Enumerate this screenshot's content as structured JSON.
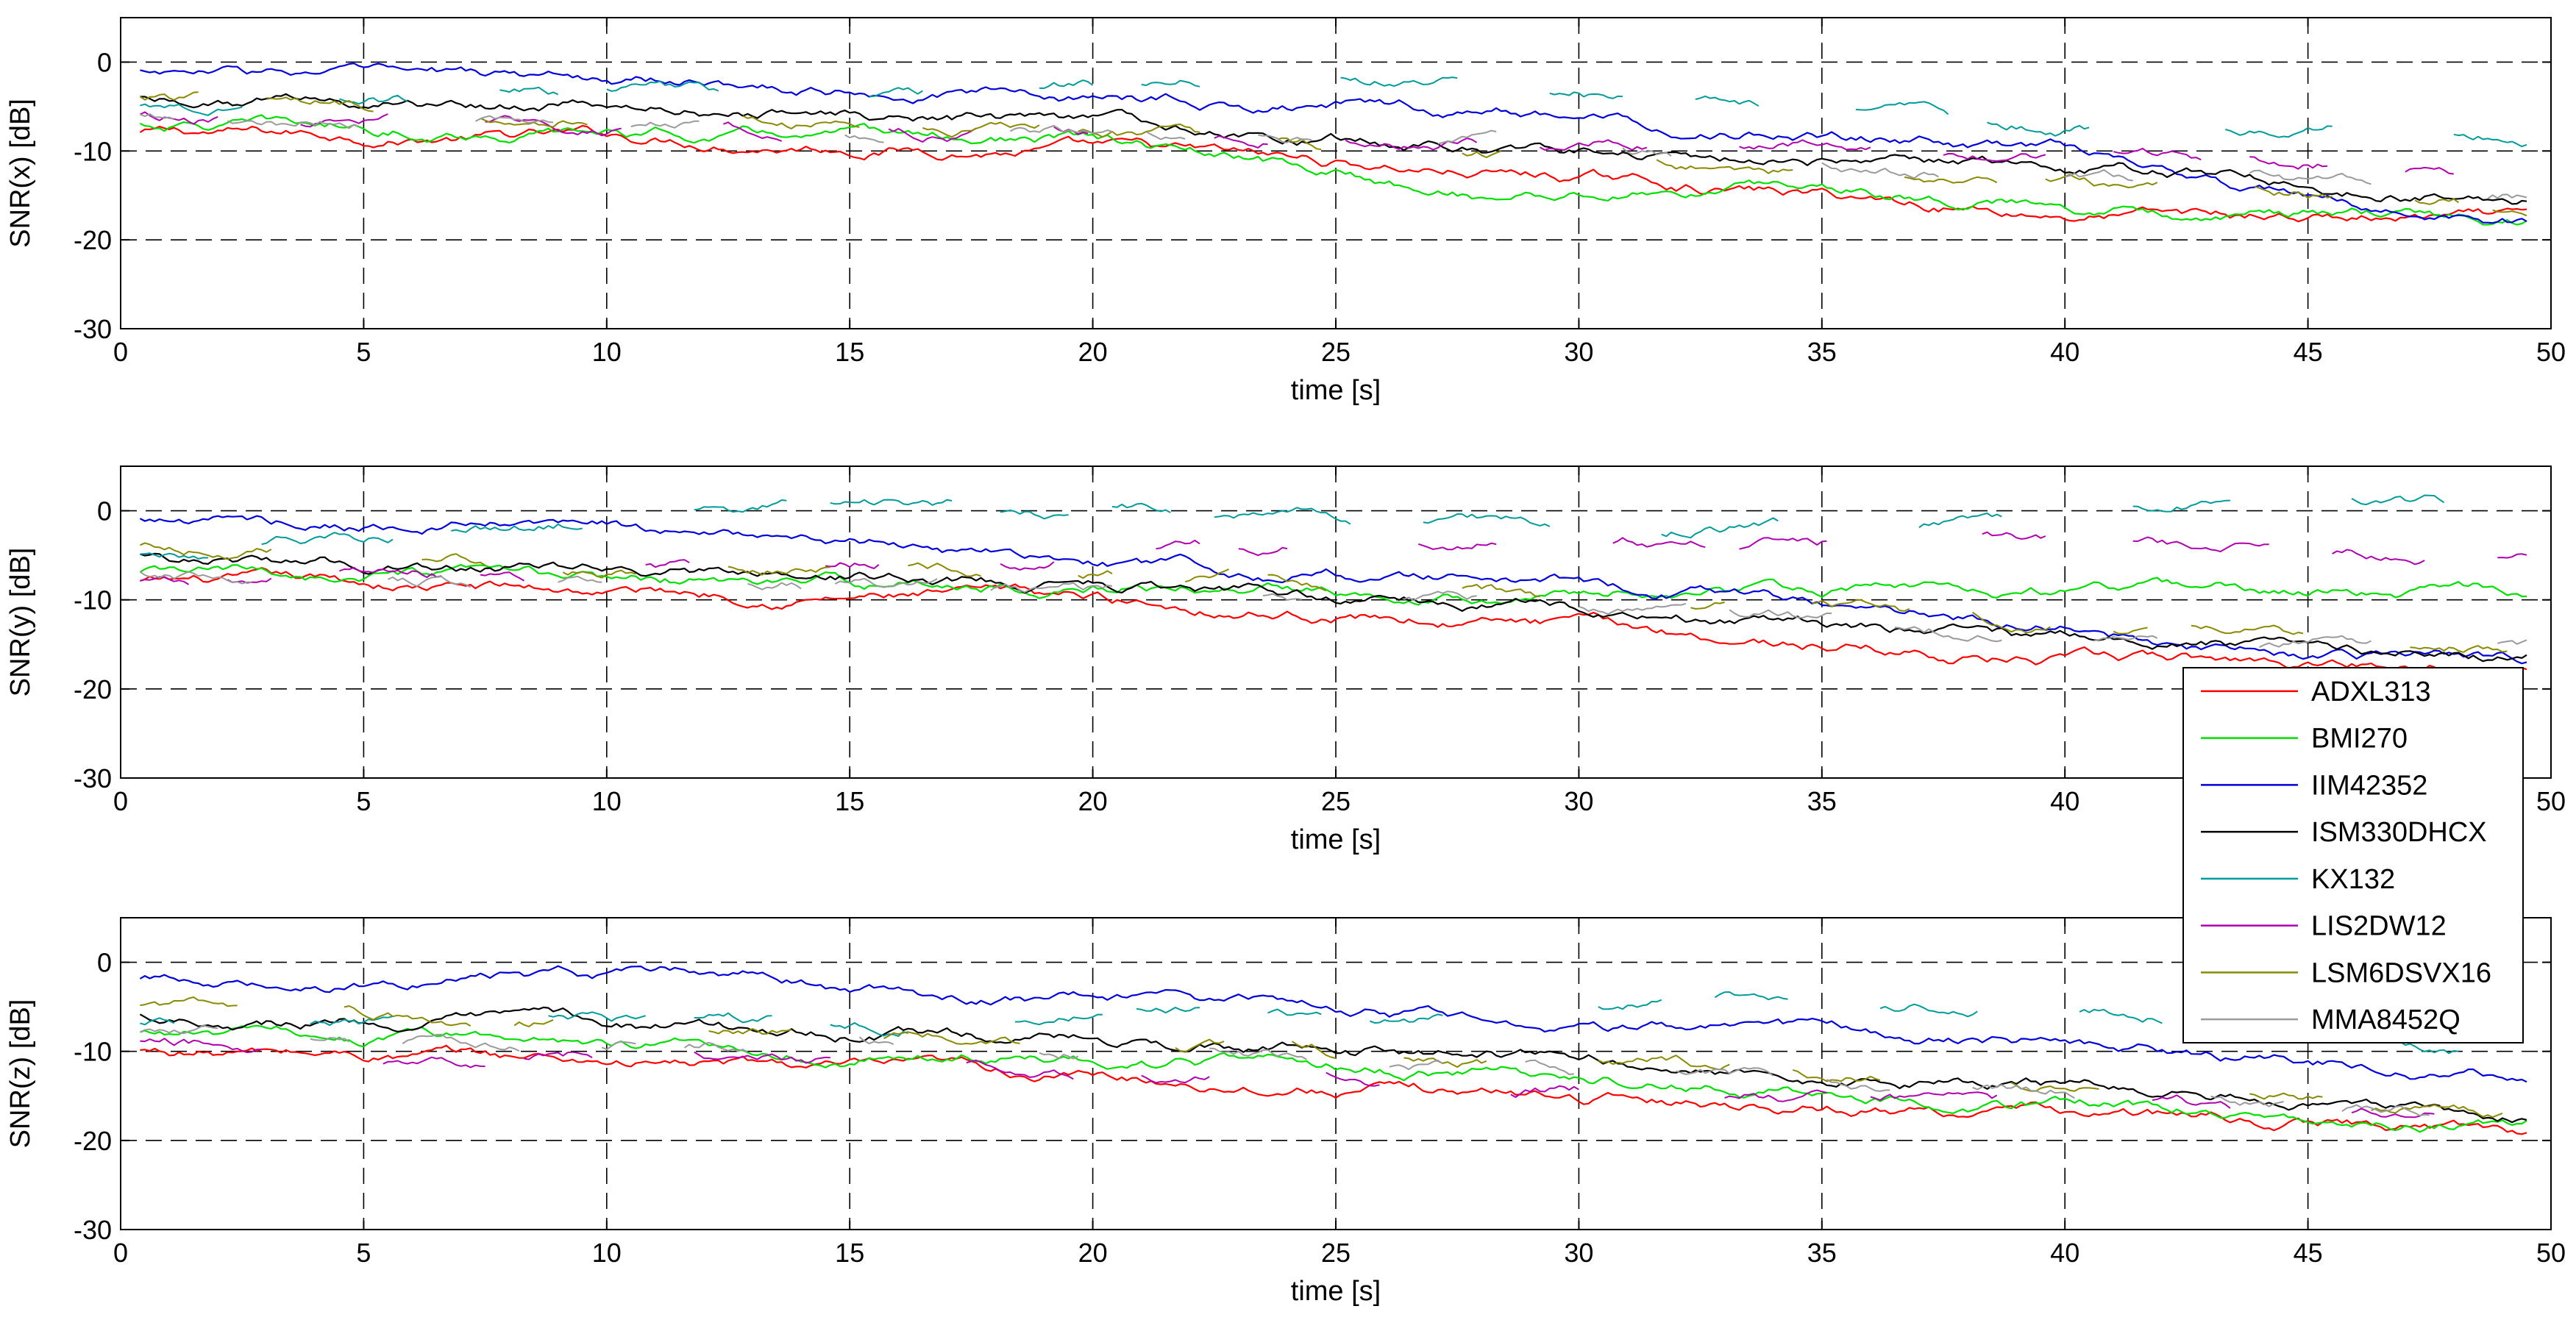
{
  "chart_data": {
    "type": "line",
    "x_start": 0.4,
    "x_step": 0.1,
    "xlim": [
      0,
      50
    ],
    "ylim": [
      -30,
      5
    ],
    "xticks": [
      0,
      5,
      10,
      15,
      20,
      25,
      30,
      35,
      40,
      45,
      50
    ],
    "yticks": [
      -30,
      -20,
      -10,
      0
    ],
    "grid": "dashed",
    "legend": {
      "placement": "right",
      "entries": [
        "ADXL313",
        "BMI270",
        "IIM42352",
        "ISM330DHCX",
        "KX132",
        "LIS2DW12",
        "LSM6DSVX16",
        "MMA8452Q"
      ]
    },
    "colors": {
      "ADXL313": "#ff0000",
      "BMI270": "#00e000",
      "IIM42352": "#0000dd",
      "ISM330DHCX": "#000000",
      "KX132": "#009b9b",
      "LIS2DW12": "#b000b0",
      "LSM6DSVX16": "#8a8a00",
      "MMA8452Q": "#9a9a9a"
    },
    "segmented_series": [
      "KX132",
      "LIS2DW12",
      "LSM6DSVX16",
      "MMA8452Q"
    ],
    "panels": [
      {
        "ylabel": "SNR(x) [dB]",
        "xlabel": "time [s]",
        "trend_knots": {
          "ADXL313": [
            [
              0.4,
              -8
            ],
            [
              10,
              -8.5
            ],
            [
              20,
              -10
            ],
            [
              30,
              -13
            ],
            [
              40,
              -17
            ],
            [
              49.5,
              -18
            ]
          ],
          "BMI270": [
            [
              0.4,
              -7
            ],
            [
              10,
              -8
            ],
            [
              20,
              -9
            ],
            [
              28,
              -15
            ],
            [
              35,
              -14
            ],
            [
              40,
              -16
            ],
            [
              49.5,
              -18
            ]
          ],
          "IIM42352": [
            [
              0.4,
              -1
            ],
            [
              10,
              -2
            ],
            [
              20,
              -4
            ],
            [
              30,
              -6
            ],
            [
              40,
              -10
            ],
            [
              45,
              -16
            ],
            [
              49.5,
              -18
            ]
          ],
          "ISM330DHCX": [
            [
              0.4,
              -4
            ],
            [
              10,
              -5
            ],
            [
              20,
              -7
            ],
            [
              30,
              -10
            ],
            [
              40,
              -12
            ],
            [
              49.5,
              -15
            ]
          ],
          "KX132": [
            [
              0.4,
              -5
            ],
            [
              25,
              -2
            ],
            [
              35,
              -5
            ],
            [
              40,
              -7
            ],
            [
              49.5,
              -8
            ]
          ],
          "LIS2DW12": [
            [
              0.4,
              -6
            ],
            [
              20,
              -8
            ],
            [
              30,
              -9
            ],
            [
              40,
              -10
            ],
            [
              49.5,
              -12
            ]
          ],
          "LSM6DSVX16": [
            [
              0.4,
              -4
            ],
            [
              10,
              -6
            ],
            [
              20,
              -8
            ],
            [
              30,
              -11
            ],
            [
              40,
              -14
            ],
            [
              49.5,
              -16
            ]
          ],
          "MMA8452Q": [
            [
              0.4,
              -6
            ],
            [
              20,
              -8
            ],
            [
              30,
              -10
            ],
            [
              40,
              -13
            ],
            [
              49.5,
              -15
            ]
          ]
        }
      },
      {
        "ylabel": "SNR(y) [dB]",
        "xlabel": "time [s]",
        "trend_knots": {
          "ADXL313": [
            [
              0.4,
              -8
            ],
            [
              10,
              -9
            ],
            [
              20,
              -10
            ],
            [
              30,
              -13
            ],
            [
              40,
              -17
            ],
            [
              49.5,
              -17
            ]
          ],
          "BMI270": [
            [
              0.4,
              -7
            ],
            [
              10,
              -8
            ],
            [
              20,
              -8.5
            ],
            [
              30,
              -9
            ],
            [
              40,
              -9
            ],
            [
              49.5,
              -9
            ]
          ],
          "IIM42352": [
            [
              0.4,
              -1
            ],
            [
              10,
              -2
            ],
            [
              20,
              -6
            ],
            [
              30,
              -8
            ],
            [
              40,
              -13
            ],
            [
              45,
              -17
            ],
            [
              49.5,
              -17
            ]
          ],
          "ISM330DHCX": [
            [
              0.4,
              -5
            ],
            [
              10,
              -7
            ],
            [
              20,
              -8
            ],
            [
              30,
              -11
            ],
            [
              40,
              -15
            ],
            [
              49.5,
              -16
            ]
          ],
          "KX132": [
            [
              0.4,
              -5
            ],
            [
              15,
              1
            ],
            [
              20,
              0
            ],
            [
              30,
              -2
            ],
            [
              40,
              -1
            ],
            [
              45,
              3
            ],
            [
              49.5,
              0
            ]
          ],
          "LIS2DW12": [
            [
              0.4,
              -8
            ],
            [
              10,
              -7
            ],
            [
              20,
              -5
            ],
            [
              30,
              -3
            ],
            [
              40,
              -4
            ],
            [
              49.5,
              -5
            ]
          ],
          "LSM6DSVX16": [
            [
              0.4,
              -4
            ],
            [
              10,
              -6
            ],
            [
              20,
              -7
            ],
            [
              30,
              -10
            ],
            [
              40,
              -13
            ],
            [
              49.5,
              -15
            ]
          ],
          "MMA8452Q": [
            [
              0.4,
              -7
            ],
            [
              20,
              -9
            ],
            [
              30,
              -11
            ],
            [
              40,
              -14
            ],
            [
              49.5,
              -15
            ]
          ]
        }
      },
      {
        "ylabel": "SNR(z) [dB]",
        "xlabel": "time [s]",
        "trend_knots": {
          "ADXL313": [
            [
              0.4,
              -10
            ],
            [
              10,
              -11
            ],
            [
              20,
              -13
            ],
            [
              30,
              -15
            ],
            [
              40,
              -17
            ],
            [
              49.5,
              -19
            ]
          ],
          "BMI270": [
            [
              0.4,
              -8
            ],
            [
              10,
              -9
            ],
            [
              20,
              -11
            ],
            [
              30,
              -13
            ],
            [
              40,
              -16
            ],
            [
              49.5,
              -18
            ]
          ],
          "IIM42352": [
            [
              0.4,
              -2
            ],
            [
              14,
              -2
            ],
            [
              15,
              -4
            ],
            [
              20,
              -4
            ],
            [
              30,
              -7
            ],
            [
              40,
              -9
            ],
            [
              49.5,
              -13
            ]
          ],
          "ISM330DHCX": [
            [
              0.4,
              -6
            ],
            [
              10,
              -7
            ],
            [
              20,
              -9
            ],
            [
              30,
              -11
            ],
            [
              40,
              -14
            ],
            [
              49.5,
              -18
            ]
          ],
          "KX132": [
            [
              0.4,
              -7
            ],
            [
              25,
              -6
            ],
            [
              35,
              -4
            ],
            [
              40,
              -5
            ],
            [
              49.5,
              -10
            ]
          ],
          "LIS2DW12": [
            [
              0.4,
              -9
            ],
            [
              20,
              -12
            ],
            [
              30,
              -14
            ],
            [
              40,
              -16
            ],
            [
              49.5,
              -18
            ]
          ],
          "LSM6DSVX16": [
            [
              0.4,
              -5
            ],
            [
              10,
              -7
            ],
            [
              20,
              -9
            ],
            [
              30,
              -11
            ],
            [
              40,
              -14
            ],
            [
              49.5,
              -17
            ]
          ],
          "MMA8452Q": [
            [
              0.4,
              -8
            ],
            [
              20,
              -10
            ],
            [
              30,
              -12
            ],
            [
              40,
              -14
            ],
            [
              49.5,
              -17
            ]
          ]
        }
      }
    ]
  }
}
